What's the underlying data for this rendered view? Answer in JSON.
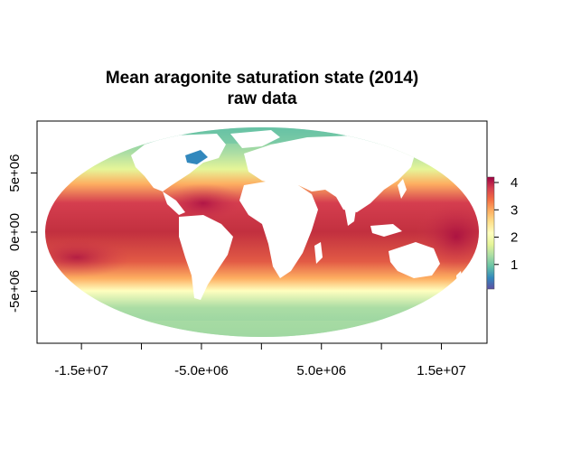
{
  "map": {
    "title": "Mean aragonite saturation state (2014)",
    "subtitle": "raw data",
    "projection": "Mollweide",
    "x_ticks": [
      "-1.5e+07",
      "-5.0e+06",
      "5.0e+06",
      "1.5e+07"
    ],
    "x_tick_values": [
      -15000000,
      -5000000,
      5000000,
      15000000
    ],
    "y_ticks": [
      "5e+06",
      "0e+00",
      "-5e+06"
    ],
    "y_tick_values": [
      5000000,
      0,
      -5000000
    ],
    "xlim": [
      -18700000,
      18800000
    ],
    "ylim": [
      -9400000,
      9400000
    ],
    "land_color": "#ffffff",
    "legend": {
      "labels": [
        "4",
        "3",
        "2",
        "1"
      ],
      "values": [
        4,
        3,
        2,
        1
      ],
      "range": [
        0.1,
        4.2
      ],
      "palette": [
        "#5E4FA2",
        "#3288BD",
        "#66C2A5",
        "#ABDDA4",
        "#E6F598",
        "#FFFFBF",
        "#FEE08B",
        "#FDAE61",
        "#F46D43",
        "#D53E4F",
        "#9E0142"
      ]
    }
  }
}
